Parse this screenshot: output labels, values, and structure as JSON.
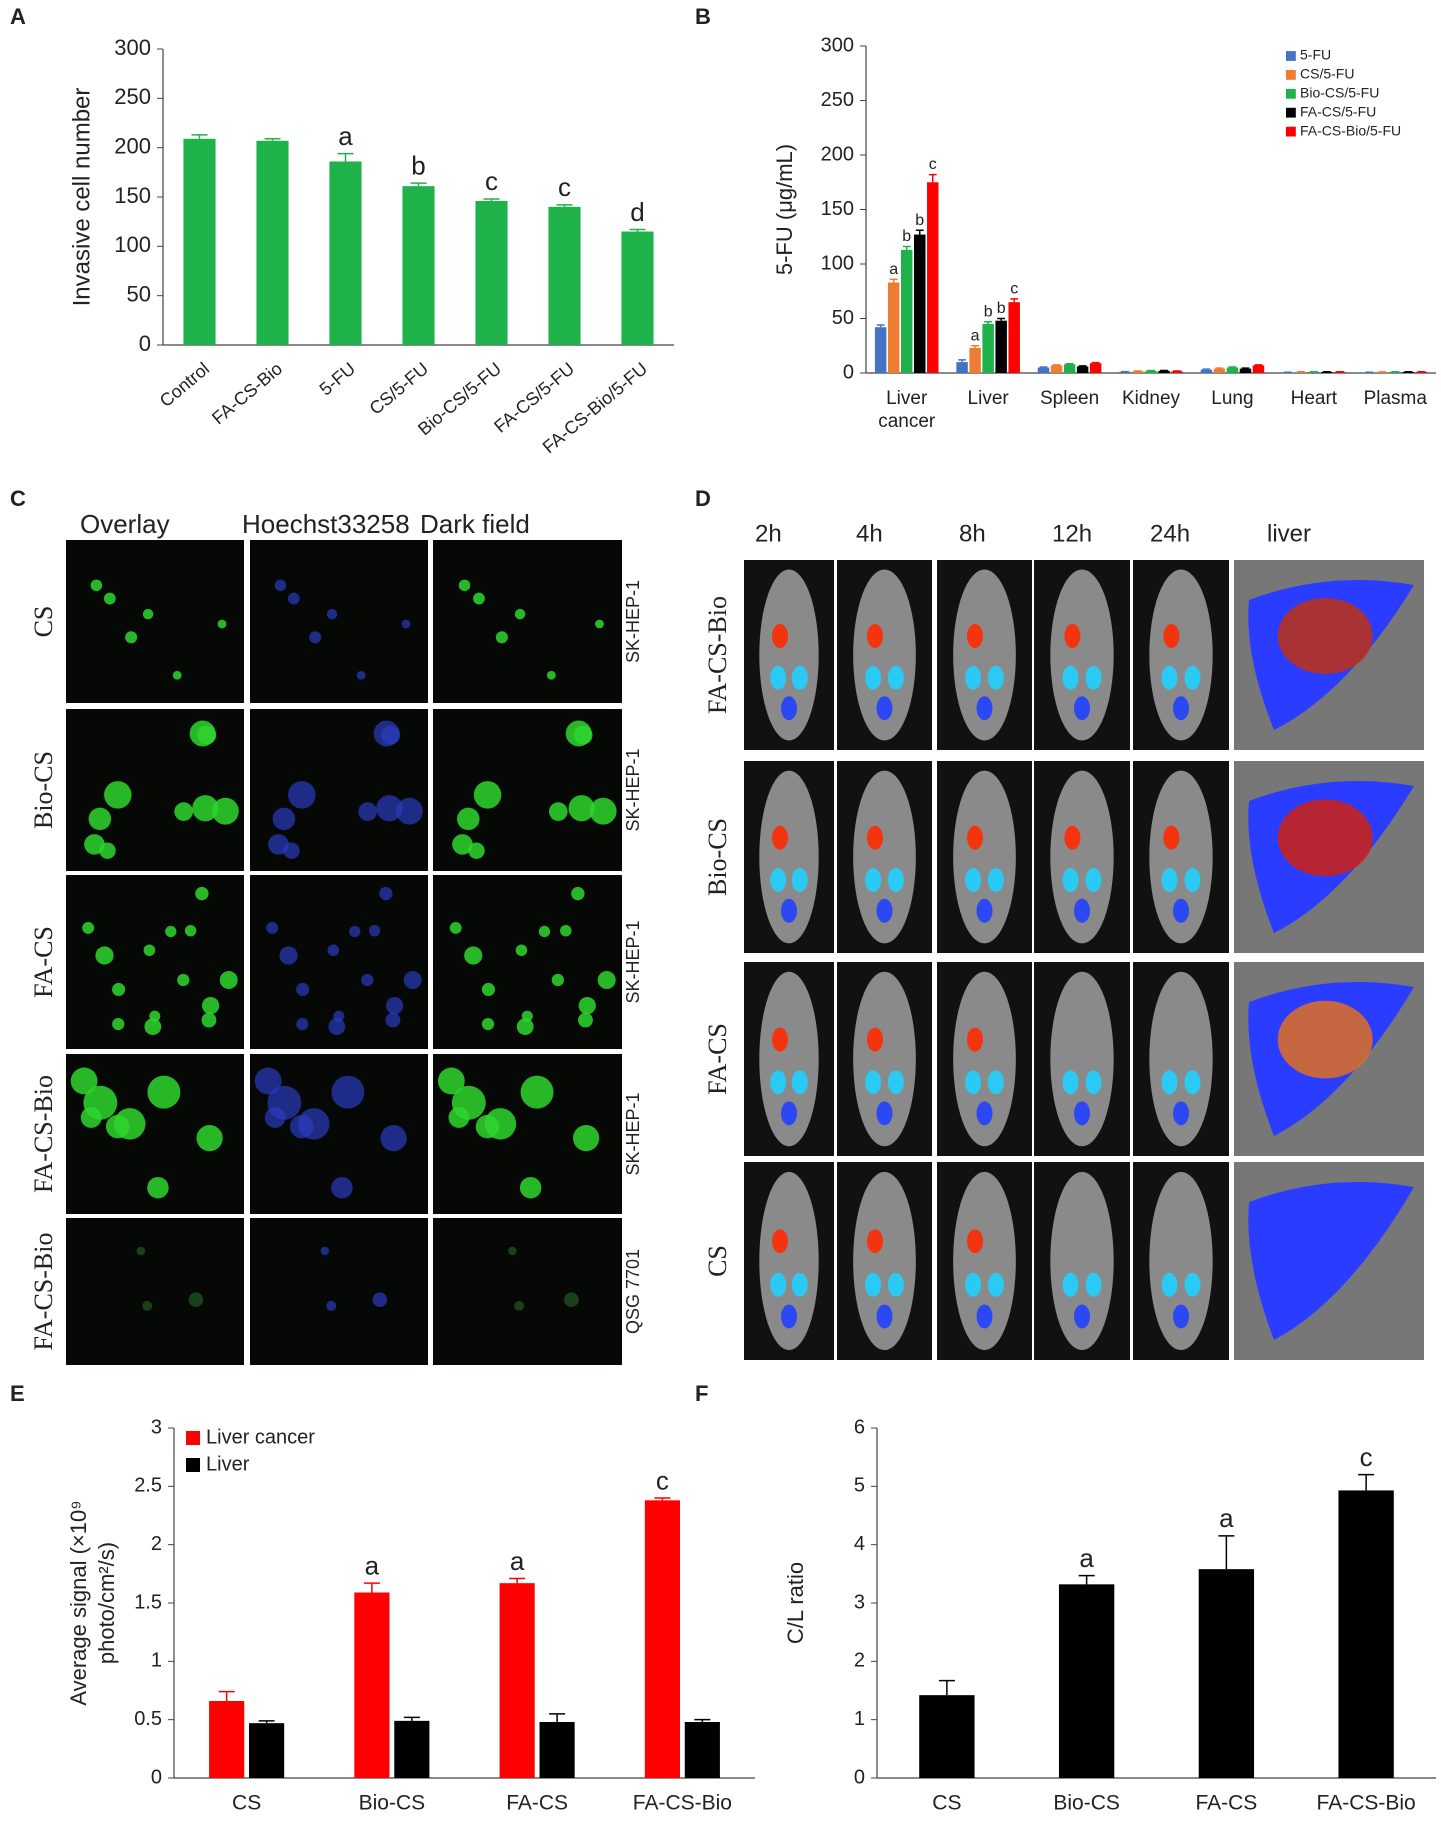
{
  "panels": [
    "A",
    "B",
    "C",
    "D",
    "E",
    "F"
  ],
  "chart_data": [
    {
      "type": "bar",
      "ylabel": "Invasive cell number",
      "categories": [
        "Control",
        "FA-CS-Bio",
        "5-FU",
        "CS/5-FU",
        "Bio-CS/5-FU",
        "FA-CS/5-FU",
        "FA-CS-Bio/5-FU"
      ],
      "values": [
        209,
        207,
        186,
        161,
        146,
        140,
        115
      ],
      "errors": [
        4,
        2,
        8,
        3,
        2,
        2,
        2
      ],
      "annotations": [
        null,
        null,
        "a",
        "b",
        "c",
        "c",
        "d"
      ],
      "color": "#1fb24a",
      "ylim": [
        0,
        300
      ],
      "yticks": [
        0,
        50,
        100,
        150,
        200,
        250,
        300
      ]
    },
    {
      "type": "bar",
      "ylabel": "5-FU (μg/mL)",
      "categories": [
        "Liver cancer",
        "Liver",
        "Spleen",
        "Kidney",
        "Lung",
        "Heart",
        "Plasma"
      ],
      "series": [
        {
          "name": "5-FU",
          "color": "#4472c4",
          "values": [
            42,
            10,
            5,
            1,
            3,
            0.5,
            0.5
          ],
          "errors": [
            2,
            2,
            0.5,
            0.3,
            0.5,
            0.2,
            0.2
          ],
          "annotations": [
            null,
            null,
            null,
            null,
            null,
            null,
            null
          ]
        },
        {
          "name": "CS/5-FU",
          "color": "#ed7d31",
          "values": [
            83,
            23,
            7,
            1.5,
            4,
            1,
            0.8
          ],
          "errors": [
            3,
            2,
            0.5,
            0.3,
            0.5,
            0.2,
            0.2
          ],
          "annotations": [
            "a",
            "a",
            null,
            null,
            null,
            null,
            null
          ]
        },
        {
          "name": "Bio-CS/5-FU",
          "color": "#1fb24a",
          "values": [
            113,
            45,
            8,
            2,
            5,
            1,
            1
          ],
          "errors": [
            3,
            2,
            0.5,
            0.3,
            0.5,
            0.2,
            0.2
          ],
          "annotations": [
            "b",
            "b",
            null,
            null,
            null,
            null,
            null
          ]
        },
        {
          "name": "FA-CS/5-FU",
          "color": "#000000",
          "values": [
            127,
            48,
            6,
            2,
            4,
            1,
            1
          ],
          "errors": [
            4,
            2,
            0.5,
            0.3,
            0.5,
            0.2,
            0.2
          ],
          "annotations": [
            "b",
            "b",
            null,
            null,
            null,
            null,
            null
          ]
        },
        {
          "name": "FA-CS-Bio/5-FU",
          "color": "#ff0000",
          "values": [
            175,
            65,
            9,
            1.5,
            7,
            1,
            1
          ],
          "errors": [
            7,
            3,
            0.5,
            0.3,
            0.5,
            0.2,
            0.2
          ],
          "annotations": [
            "c",
            "c",
            null,
            null,
            null,
            null,
            null
          ]
        }
      ],
      "ylim": [
        0,
        300
      ],
      "yticks": [
        0,
        50,
        100,
        150,
        200,
        250,
        300
      ],
      "legend": "upper right"
    },
    {
      "type": "bar",
      "ylabel": [
        "Average signal (×10⁹",
        "photo/cm²/s)"
      ],
      "categories": [
        "CS",
        "Bio-CS",
        "FA-CS",
        "FA-CS-Bio"
      ],
      "series": [
        {
          "name": "Liver cancer",
          "color": "#ff0000",
          "values": [
            0.66,
            1.59,
            1.67,
            2.38
          ],
          "errors": [
            0.08,
            0.08,
            0.04,
            0.02
          ],
          "annotations": [
            null,
            "a",
            "a",
            "c"
          ]
        },
        {
          "name": "Liver",
          "color": "#000000",
          "values": [
            0.47,
            0.49,
            0.48,
            0.48
          ],
          "errors": [
            0.02,
            0.03,
            0.07,
            0.02
          ],
          "annotations": [
            null,
            null,
            null,
            null
          ]
        }
      ],
      "ylim": [
        0,
        3
      ],
      "yticks": [
        0,
        0.5,
        1,
        1.5,
        2,
        2.5,
        3
      ],
      "legend": "upper left"
    },
    {
      "type": "bar",
      "ylabel": "C/L ratio",
      "categories": [
        "CS",
        "Bio-CS",
        "FA-CS",
        "FA-CS-Bio"
      ],
      "values": [
        1.42,
        3.32,
        3.58,
        4.93
      ],
      "errors": [
        0.25,
        0.15,
        0.57,
        0.27
      ],
      "annotations": [
        null,
        "a",
        "a",
        "c"
      ],
      "color": "#000000",
      "ylim": [
        0,
        6
      ],
      "yticks": [
        0,
        1,
        2,
        3,
        4,
        5,
        6
      ]
    }
  ],
  "image_panels": {
    "C": {
      "columns": [
        "Overlay",
        "Hoechst33258",
        "Dark field"
      ],
      "rows": [
        "CS",
        "Bio-CS",
        "FA-CS",
        "FA-CS-Bio",
        "FA-CS-Bio"
      ],
      "cell_lines": [
        "SK-HEP-1",
        "SK-HEP-1",
        "SK-HEP-1",
        "SK-HEP-1",
        "QSG 7701"
      ]
    },
    "D": {
      "columns": [
        "2h",
        "4h",
        "8h",
        "12h",
        "24h",
        "liver"
      ],
      "rows": [
        "FA-CS-Bio",
        "Bio-CS",
        "FA-CS",
        "CS"
      ]
    }
  }
}
